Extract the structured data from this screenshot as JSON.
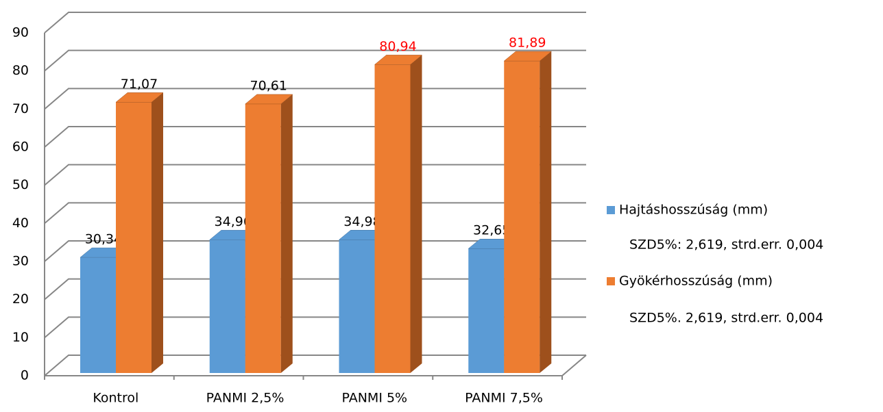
{
  "chart_data": {
    "type": "bar3d",
    "categories": [
      "Kontrol",
      "PANMI 2,5%",
      "PANMI 5%",
      "PANMI 7,5%"
    ],
    "series": [
      {
        "name": "Hajtáshosszúság (mm)",
        "color": "#5b9bd5",
        "values": [
          30.34,
          34.96,
          34.98,
          32.65
        ],
        "value_labels": [
          "30,34",
          "34,96",
          "34,98",
          "32,65"
        ],
        "label_colors": [
          "#000000",
          "#000000",
          "#000000",
          "#000000"
        ]
      },
      {
        "name": "Gyökérhosszúság (mm)",
        "color": "#ed7d31",
        "values": [
          71.07,
          70.61,
          80.94,
          81.89
        ],
        "value_labels": [
          "71,07",
          "70,61",
          "80,94",
          "81,89"
        ],
        "label_colors": [
          "#000000",
          "#000000",
          "#ff0000",
          "#ff0000"
        ]
      }
    ],
    "annotations": [
      "SZD5%: 2,619, strd.err. 0,004",
      "SZD5%. 2,619, strd.err. 0,004"
    ],
    "ylim": [
      0,
      90
    ],
    "yticks": [
      0,
      10,
      20,
      30,
      40,
      50,
      60,
      70,
      80,
      90
    ],
    "grid": true,
    "legend": "right"
  }
}
